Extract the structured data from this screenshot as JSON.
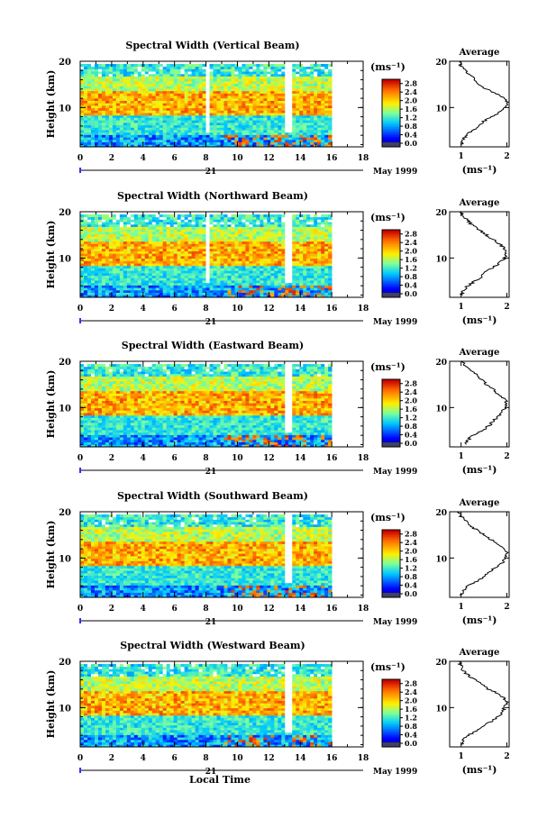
{
  "chart_data": [
    {
      "type": "heatmap",
      "title": "Spectral Width (Vertical Beam)",
      "ylabel": "Height (km)",
      "ylim": [
        1.5,
        20
      ],
      "yticks": [
        "20",
        "10"
      ],
      "xlim": [
        0,
        18
      ],
      "xticks": [
        "0",
        "2",
        "4",
        "6",
        "8",
        "10",
        "12",
        "14",
        "16",
        "18"
      ],
      "date_day": "21",
      "date_label": "May 1999",
      "colorbar_unit": "(ms⁻¹)",
      "colorbar_ticks": [
        "0.0",
        "0.4",
        "0.8",
        "1.2",
        "1.6",
        "2.0",
        "2.4",
        "2.8"
      ],
      "colorbar_range": [
        0.0,
        3.0
      ],
      "gap_times": [
        [
          7.9,
          8.1
        ],
        [
          12.9,
          13.3
        ]
      ],
      "average_profile": {
        "title": "Average",
        "xticks": [
          "1",
          "2"
        ],
        "xlim": [
          0.75,
          2.05
        ],
        "xlabel": "(ms⁻¹)",
        "yticks": [
          "20",
          "10"
        ],
        "points": [
          [
            1.02,
            2
          ],
          [
            1.05,
            3
          ],
          [
            1.1,
            4
          ],
          [
            1.25,
            5
          ],
          [
            1.4,
            6
          ],
          [
            1.5,
            7
          ],
          [
            1.65,
            8
          ],
          [
            1.85,
            9
          ],
          [
            1.95,
            10
          ],
          [
            2.0,
            11
          ],
          [
            1.95,
            12
          ],
          [
            1.75,
            13
          ],
          [
            1.55,
            14
          ],
          [
            1.4,
            15
          ],
          [
            1.3,
            16
          ],
          [
            1.2,
            17
          ],
          [
            1.1,
            18
          ],
          [
            1.0,
            19
          ],
          [
            0.95,
            20
          ]
        ]
      }
    },
    {
      "type": "heatmap",
      "title": "Spectral Width (Northward Beam)",
      "ylabel": "Height (km)",
      "ylim": [
        1.5,
        20
      ],
      "yticks": [
        "20",
        "10"
      ],
      "xlim": [
        0,
        18
      ],
      "xticks": [
        "0",
        "2",
        "4",
        "6",
        "8",
        "10",
        "12",
        "14",
        "16",
        "18"
      ],
      "date_day": "21",
      "date_label": "May 1999",
      "colorbar_unit": "(ms⁻¹)",
      "colorbar_ticks": [
        "0.0",
        "0.4",
        "0.8",
        "1.2",
        "1.6",
        "2.0",
        "2.4",
        "2.8"
      ],
      "colorbar_range": [
        0.0,
        3.0
      ],
      "gap_times": [
        [
          7.9,
          8.0
        ],
        [
          12.9,
          13.3
        ]
      ],
      "average_profile": {
        "title": "Average",
        "xticks": [
          "1",
          "2"
        ],
        "xlim": [
          0.75,
          2.05
        ],
        "xlabel": "(ms⁻¹)",
        "yticks": [
          "20",
          "10"
        ],
        "points": [
          [
            1.0,
            2
          ],
          [
            1.05,
            3
          ],
          [
            1.15,
            4
          ],
          [
            1.3,
            5
          ],
          [
            1.45,
            6
          ],
          [
            1.55,
            7
          ],
          [
            1.7,
            8
          ],
          [
            1.85,
            9
          ],
          [
            1.95,
            10
          ],
          [
            2.0,
            11
          ],
          [
            1.95,
            12
          ],
          [
            1.85,
            13
          ],
          [
            1.7,
            14
          ],
          [
            1.55,
            15
          ],
          [
            1.4,
            16
          ],
          [
            1.25,
            17
          ],
          [
            1.15,
            18
          ],
          [
            1.05,
            19
          ],
          [
            1.0,
            20
          ]
        ]
      }
    },
    {
      "type": "heatmap",
      "title": "Spectral Width (Eastward Beam)",
      "ylabel": "Height (km)",
      "ylim": [
        1.5,
        20
      ],
      "yticks": [
        "20",
        "10"
      ],
      "xlim": [
        0,
        18
      ],
      "xticks": [
        "0",
        "2",
        "4",
        "6",
        "8",
        "10",
        "12",
        "14",
        "16",
        "18"
      ],
      "date_day": "21",
      "date_label": "May 1999",
      "colorbar_unit": "(ms⁻¹)",
      "colorbar_ticks": [
        "0.0",
        "0.4",
        "0.8",
        "1.2",
        "1.6",
        "2.0",
        "2.4",
        "2.8"
      ],
      "colorbar_range": [
        0.0,
        3.0
      ],
      "gap_times": [
        [
          12.9,
          13.3
        ]
      ],
      "average_profile": {
        "title": "Average",
        "xticks": [
          "1",
          "2"
        ],
        "xlim": [
          0.75,
          2.05
        ],
        "xlabel": "(ms⁻¹)",
        "yticks": [
          "20",
          "10"
        ],
        "points": [
          [
            1.1,
            2
          ],
          [
            1.15,
            3
          ],
          [
            1.25,
            4
          ],
          [
            1.45,
            5
          ],
          [
            1.6,
            6
          ],
          [
            1.7,
            7
          ],
          [
            1.8,
            8
          ],
          [
            1.9,
            9
          ],
          [
            1.95,
            10
          ],
          [
            2.0,
            11
          ],
          [
            1.95,
            12
          ],
          [
            1.8,
            13
          ],
          [
            1.7,
            14
          ],
          [
            1.55,
            15
          ],
          [
            1.45,
            16
          ],
          [
            1.35,
            17
          ],
          [
            1.2,
            18
          ],
          [
            1.1,
            19
          ],
          [
            1.0,
            20
          ]
        ]
      }
    },
    {
      "type": "heatmap",
      "title": "Spectral Width (Southward Beam)",
      "ylabel": "Height (km)",
      "ylim": [
        1.5,
        20
      ],
      "yticks": [
        "20",
        "10"
      ],
      "xlim": [
        0,
        18
      ],
      "xticks": [
        "0",
        "2",
        "4",
        "6",
        "8",
        "10",
        "12",
        "14",
        "16",
        "18"
      ],
      "date_day": "21",
      "date_label": "May 1999",
      "colorbar_unit": "(ms⁻¹)",
      "colorbar_ticks": [
        "0.0",
        "0.4",
        "0.8",
        "1.2",
        "1.6",
        "2.0",
        "2.4",
        "2.8"
      ],
      "colorbar_range": [
        0.0,
        3.0
      ],
      "gap_times": [
        [
          12.9,
          13.3
        ]
      ],
      "average_profile": {
        "title": "Average",
        "xticks": [
          "1",
          "2"
        ],
        "xlim": [
          0.75,
          2.05
        ],
        "xlabel": "(ms⁻¹)",
        "yticks": [
          "20",
          "10"
        ],
        "points": [
          [
            1.0,
            2
          ],
          [
            1.05,
            3
          ],
          [
            1.15,
            4
          ],
          [
            1.35,
            5
          ],
          [
            1.5,
            6
          ],
          [
            1.6,
            7
          ],
          [
            1.75,
            8
          ],
          [
            1.9,
            9
          ],
          [
            1.95,
            10
          ],
          [
            2.0,
            11
          ],
          [
            1.95,
            12
          ],
          [
            1.8,
            13
          ],
          [
            1.65,
            14
          ],
          [
            1.5,
            15
          ],
          [
            1.35,
            16
          ],
          [
            1.2,
            17
          ],
          [
            1.1,
            18
          ],
          [
            1.0,
            19
          ],
          [
            0.95,
            20
          ]
        ]
      }
    },
    {
      "type": "heatmap",
      "title": "Spectral Width (Westward Beam)",
      "ylabel": "Height (km)",
      "ylim": [
        1.5,
        20
      ],
      "yticks": [
        "20",
        "10"
      ],
      "xlim": [
        0,
        18
      ],
      "xticks": [
        "0",
        "2",
        "4",
        "6",
        "8",
        "10",
        "12",
        "14",
        "16",
        "18"
      ],
      "xlabel": "Local Time",
      "date_day": "21",
      "date_label": "May 1999",
      "colorbar_unit": "(ms⁻¹)",
      "colorbar_ticks": [
        "0.0",
        "0.4",
        "0.8",
        "1.2",
        "1.6",
        "2.0",
        "2.4",
        "2.8"
      ],
      "colorbar_range": [
        0.0,
        3.0
      ],
      "gap_times": [
        [
          12.9,
          13.3
        ]
      ],
      "average_profile": {
        "title": "Average",
        "xticks": [
          "1",
          "2"
        ],
        "xlim": [
          0.75,
          2.05
        ],
        "xlabel": "(ms⁻¹)",
        "yticks": [
          "20",
          "10"
        ],
        "points": [
          [
            1.0,
            2
          ],
          [
            1.05,
            3
          ],
          [
            1.15,
            4
          ],
          [
            1.35,
            5
          ],
          [
            1.5,
            6
          ],
          [
            1.65,
            7
          ],
          [
            1.8,
            8
          ],
          [
            1.9,
            9
          ],
          [
            1.95,
            10
          ],
          [
            2.0,
            11
          ],
          [
            1.95,
            12
          ],
          [
            1.8,
            13
          ],
          [
            1.6,
            14
          ],
          [
            1.45,
            15
          ],
          [
            1.3,
            16
          ],
          [
            1.15,
            17
          ],
          [
            1.05,
            18
          ],
          [
            1.0,
            19
          ],
          [
            0.95,
            20
          ]
        ]
      }
    }
  ]
}
